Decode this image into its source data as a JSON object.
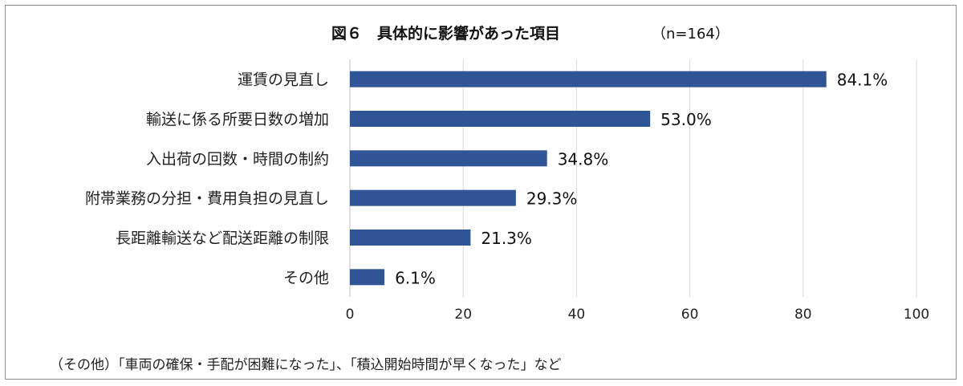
{
  "chart_data": {
    "type": "bar",
    "orientation": "horizontal",
    "title": "図６　具体的に影響があった項目",
    "subtitle": "（n=164）",
    "categories": [
      "運賃の見直し",
      "輸送に係る所要日数の増加",
      "入出荷の回数・時間の制約",
      "附帯業務の分担・費用負担の見直し",
      "長距離輸送など配送距離の制限",
      "その他"
    ],
    "values": [
      84.1,
      53.0,
      34.8,
      29.3,
      21.3,
      6.1
    ],
    "data_labels": [
      "84.1%",
      "53.0%",
      "34.8%",
      "29.3%",
      "21.3%",
      "6.1%"
    ],
    "xlim": [
      0,
      100
    ],
    "xticks": [
      "0",
      "20",
      "40",
      "60",
      "80",
      "100"
    ],
    "xlabel": "",
    "ylabel": "",
    "grid": true,
    "legend": "none",
    "bar_color": "#2f5597"
  },
  "footnote": "（その他）「車両の確保・手配が困難になった」、「積込開始時間が早くなった」など"
}
